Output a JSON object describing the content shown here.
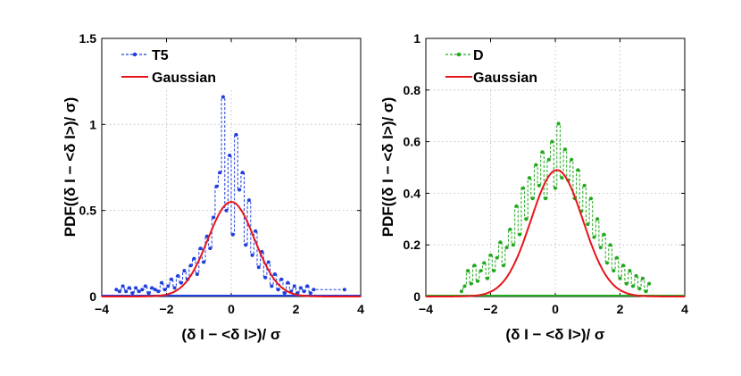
{
  "charts": [
    {
      "type": "line",
      "xlabel": "(δ I − <δ I>)/ σ",
      "ylabel": "PDF((δ I − <δ I>)/ σ)",
      "xlim": [
        -4,
        4
      ],
      "ylim": [
        0,
        1.5
      ],
      "xticks": [
        -4,
        -2,
        0,
        2,
        4
      ],
      "xtick_labels": [
        "−4",
        "−2",
        "0",
        "2",
        "4"
      ],
      "yticks": [
        0,
        0.5,
        1,
        1.5
      ],
      "ytick_labels": [
        "0",
        "0.5",
        "1",
        "1.5"
      ],
      "grid": true,
      "legend_position": "top-left",
      "series": [
        {
          "name": "T5",
          "color": "#1f3fdc",
          "style": "dash-dot-markers",
          "x": [
            -3.55,
            -3.45,
            -3.35,
            -3.25,
            -3.15,
            -3.05,
            -2.95,
            -2.85,
            -2.75,
            -2.65,
            -2.55,
            -2.45,
            -2.35,
            -2.25,
            -2.15,
            -2.05,
            -1.95,
            -1.85,
            -1.75,
            -1.65,
            -1.55,
            -1.45,
            -1.35,
            -1.25,
            -1.15,
            -1.05,
            -0.95,
            -0.85,
            -0.75,
            -0.65,
            -0.55,
            -0.45,
            -0.35,
            -0.25,
            -0.15,
            -0.05,
            0.05,
            0.15,
            0.25,
            0.35,
            0.45,
            0.55,
            0.65,
            0.75,
            0.85,
            0.95,
            1.05,
            1.15,
            1.25,
            1.35,
            1.45,
            1.55,
            1.65,
            1.75,
            1.85,
            1.95,
            2.05,
            2.15,
            2.25,
            2.35,
            2.45,
            2.55,
            3.5
          ],
          "y": [
            0.04,
            0.03,
            0.06,
            0.03,
            0.05,
            0.02,
            0.05,
            0.03,
            0.04,
            0.06,
            0.02,
            0.05,
            0.04,
            0.03,
            0.08,
            0.04,
            0.06,
            0.1,
            0.05,
            0.12,
            0.08,
            0.15,
            0.1,
            0.18,
            0.22,
            0.13,
            0.28,
            0.2,
            0.35,
            0.28,
            0.46,
            0.64,
            0.72,
            1.16,
            0.5,
            0.82,
            0.36,
            0.94,
            0.62,
            0.72,
            0.3,
            0.56,
            0.24,
            0.38,
            0.17,
            0.26,
            0.11,
            0.2,
            0.06,
            0.13,
            0.04,
            0.1,
            0.02,
            0.08,
            0.03,
            0.06,
            0.02,
            0.05,
            0.03,
            0.06,
            0.02,
            0.04,
            0.04
          ]
        },
        {
          "name": "Gaussian",
          "color": "#e8141c",
          "style": "solid",
          "mean": 0,
          "sigma": 0.72,
          "peak": 0.55
        }
      ]
    },
    {
      "type": "line",
      "xlabel": "(δ I − <δ I>)/ σ",
      "ylabel": "PDF((δ I − <δ I>)/ σ)",
      "xlim": [
        -4,
        4
      ],
      "ylim": [
        0,
        1
      ],
      "xticks": [
        -4,
        -2,
        0,
        2,
        4
      ],
      "xtick_labels": [
        "−4",
        "−2",
        "0",
        "2",
        "4"
      ],
      "yticks": [
        0,
        0.2,
        0.4,
        0.6,
        0.8,
        1
      ],
      "ytick_labels": [
        "0",
        "0.2",
        "0.4",
        "0.6",
        "0.8",
        "1"
      ],
      "grid": true,
      "legend_position": "top-left",
      "series": [
        {
          "name": "D",
          "color": "#22a81e",
          "style": "dash-dot-markers",
          "x": [
            -2.9,
            -2.8,
            -2.7,
            -2.6,
            -2.5,
            -2.4,
            -2.3,
            -2.2,
            -2.1,
            -2.0,
            -1.9,
            -1.8,
            -1.7,
            -1.6,
            -1.5,
            -1.4,
            -1.3,
            -1.2,
            -1.1,
            -1.0,
            -0.9,
            -0.8,
            -0.7,
            -0.6,
            -0.5,
            -0.4,
            -0.3,
            -0.2,
            -0.1,
            0.0,
            0.1,
            0.2,
            0.3,
            0.4,
            0.5,
            0.6,
            0.7,
            0.8,
            0.9,
            1.0,
            1.1,
            1.2,
            1.3,
            1.4,
            1.5,
            1.6,
            1.7,
            1.8,
            1.9,
            2.0,
            2.1,
            2.2,
            2.3,
            2.4,
            2.5,
            2.6,
            2.7,
            2.8,
            2.9
          ],
          "y": [
            0.02,
            0.04,
            0.1,
            0.05,
            0.12,
            0.06,
            0.1,
            0.13,
            0.07,
            0.16,
            0.1,
            0.15,
            0.21,
            0.12,
            0.19,
            0.26,
            0.2,
            0.35,
            0.24,
            0.42,
            0.3,
            0.46,
            0.38,
            0.51,
            0.43,
            0.56,
            0.38,
            0.53,
            0.6,
            0.42,
            0.67,
            0.46,
            0.57,
            0.45,
            0.53,
            0.38,
            0.49,
            0.33,
            0.43,
            0.28,
            0.38,
            0.23,
            0.3,
            0.19,
            0.24,
            0.13,
            0.2,
            0.1,
            0.15,
            0.07,
            0.12,
            0.05,
            0.1,
            0.04,
            0.08,
            0.03,
            0.07,
            0.02,
            0.05
          ]
        },
        {
          "name": "Gaussian",
          "color": "#e8141c",
          "style": "solid",
          "mean": 0.05,
          "sigma": 0.8,
          "peak": 0.49
        }
      ]
    }
  ]
}
